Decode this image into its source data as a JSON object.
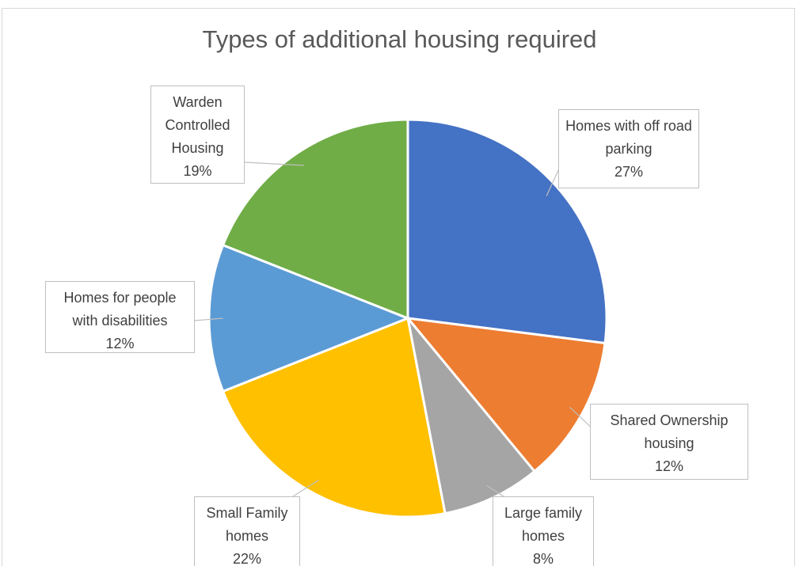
{
  "chart_data": {
    "type": "pie",
    "title": "Types of additional housing required",
    "categories": [
      "Homes with off road parking",
      "Shared Ownership housing",
      "Large family homes",
      "Small Family homes",
      "Homes for people with disabilities",
      "Warden Controlled Housing"
    ],
    "values": [
      27,
      12,
      8,
      22,
      12,
      19
    ],
    "value_labels": [
      "27%",
      "12%",
      "8%",
      "22%",
      "12%",
      "19%"
    ],
    "colors": [
      "#4472c4",
      "#ed7d31",
      "#a5a5a5",
      "#ffc000",
      "#5b9bd5",
      "#70ad47"
    ]
  }
}
